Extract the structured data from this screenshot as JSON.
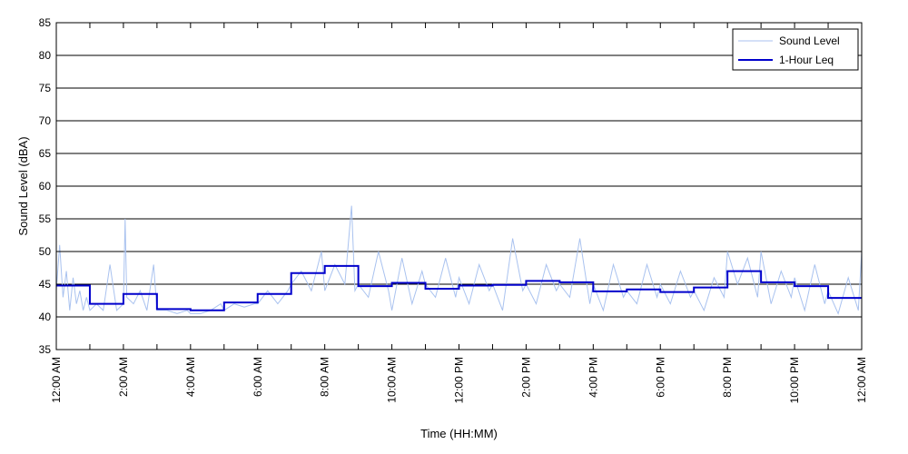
{
  "chart_data": {
    "type": "line",
    "title": "",
    "xlabel": "Time (HH:MM)",
    "ylabel": "Sound Level (dBA)",
    "ylim": [
      35,
      85
    ],
    "yticks": [
      35,
      40,
      45,
      50,
      55,
      60,
      65,
      70,
      75,
      80,
      85
    ],
    "xlim_hours": [
      0,
      24
    ],
    "xticks": [
      {
        "hour": 0,
        "label": "12:00 AM"
      },
      {
        "hour": 2,
        "label": "2:00 AM"
      },
      {
        "hour": 4,
        "label": "4:00 AM"
      },
      {
        "hour": 6,
        "label": "6:00 AM"
      },
      {
        "hour": 8,
        "label": "8:00 AM"
      },
      {
        "hour": 10,
        "label": "10:00 AM"
      },
      {
        "hour": 12,
        "label": "12:00 PM"
      },
      {
        "hour": 14,
        "label": "2:00 PM"
      },
      {
        "hour": 16,
        "label": "4:00 PM"
      },
      {
        "hour": 18,
        "label": "6:00 PM"
      },
      {
        "hour": 20,
        "label": "8:00 PM"
      },
      {
        "hour": 22,
        "label": "10:00 PM"
      },
      {
        "hour": 24,
        "label": "12:00 AM"
      }
    ],
    "minor_xticks_hours": [
      1,
      3,
      5,
      7,
      9,
      11,
      13,
      15,
      17,
      19,
      21,
      23
    ],
    "grid": "horizontal",
    "legend": {
      "placement": "top-right",
      "entries": [
        "Sound Level",
        "1-Hour Leq"
      ]
    },
    "colors": {
      "sound_level": "#a9c2ef",
      "leq": "#0000cc",
      "grid": "#000000"
    },
    "series": [
      {
        "name": "Sound Level",
        "values_per_hour": {
          "x_hours": [
            0,
            0.1,
            0.2,
            0.3,
            0.4,
            0.5,
            0.6,
            0.7,
            0.8,
            0.9,
            1.0,
            1.2,
            1.4,
            1.6,
            1.8,
            2.0,
            2.05,
            2.1,
            2.3,
            2.5,
            2.7,
            2.9,
            3.0,
            3.3,
            3.6,
            3.9,
            4.0,
            4.3,
            4.6,
            4.9,
            5.0,
            5.3,
            5.6,
            5.9,
            6.0,
            6.3,
            6.6,
            6.9,
            7.0,
            7.3,
            7.6,
            7.9,
            8.0,
            8.3,
            8.6,
            8.8,
            8.9,
            9.0,
            9.3,
            9.6,
            9.9,
            10.0,
            10.3,
            10.6,
            10.9,
            11.0,
            11.3,
            11.6,
            11.9,
            12.0,
            12.3,
            12.6,
            12.9,
            13.0,
            13.3,
            13.6,
            13.9,
            14.0,
            14.3,
            14.6,
            14.9,
            15.0,
            15.3,
            15.6,
            15.9,
            16.0,
            16.3,
            16.6,
            16.9,
            17.0,
            17.3,
            17.6,
            17.9,
            18.0,
            18.3,
            18.6,
            18.9,
            19.0,
            19.3,
            19.6,
            19.9,
            20.0,
            20.3,
            20.6,
            20.9,
            21.0,
            21.3,
            21.6,
            21.9,
            22.0,
            22.3,
            22.6,
            22.9,
            23.0,
            23.3,
            23.6,
            23.9,
            24.0
          ],
          "y_dba": [
            44,
            51,
            43,
            47,
            41,
            46,
            42,
            44,
            41,
            43,
            41,
            42,
            41,
            48,
            41,
            42,
            55,
            43,
            42,
            44,
            41,
            48,
            41,
            41,
            40.5,
            41,
            40.5,
            40.5,
            41,
            42,
            41,
            42,
            41.5,
            42,
            42,
            44,
            42,
            44,
            45,
            47,
            44,
            50,
            44,
            48,
            45,
            57,
            44,
            45,
            43,
            50,
            44,
            41,
            49,
            42,
            47,
            45,
            43,
            49,
            43,
            46,
            42,
            48,
            44,
            45,
            41,
            52,
            44,
            45,
            42,
            48,
            44,
            45,
            43,
            52,
            42,
            45,
            41,
            48,
            43,
            44,
            42,
            48,
            43,
            45,
            42,
            47,
            43,
            44,
            41,
            46,
            43,
            50,
            45,
            49,
            43,
            50,
            42,
            47,
            43,
            46,
            41,
            48,
            42,
            44,
            40.5,
            46,
            41,
            50
          ]
        }
      },
      {
        "name": "1-Hour Leq",
        "hour_start": [
          0,
          1,
          2,
          3,
          4,
          5,
          6,
          7,
          8,
          9,
          10,
          11,
          12,
          13,
          14,
          15,
          16,
          17,
          18,
          19,
          20,
          21,
          22,
          23
        ],
        "values": [
          44.8,
          42.0,
          43.5,
          41.2,
          41.0,
          42.2,
          43.5,
          46.7,
          47.8,
          44.7,
          45.2,
          44.3,
          44.8,
          44.9,
          45.5,
          45.3,
          43.9,
          44.2,
          43.8,
          44.5,
          47.0,
          45.3,
          44.7,
          42.9
        ]
      }
    ]
  }
}
